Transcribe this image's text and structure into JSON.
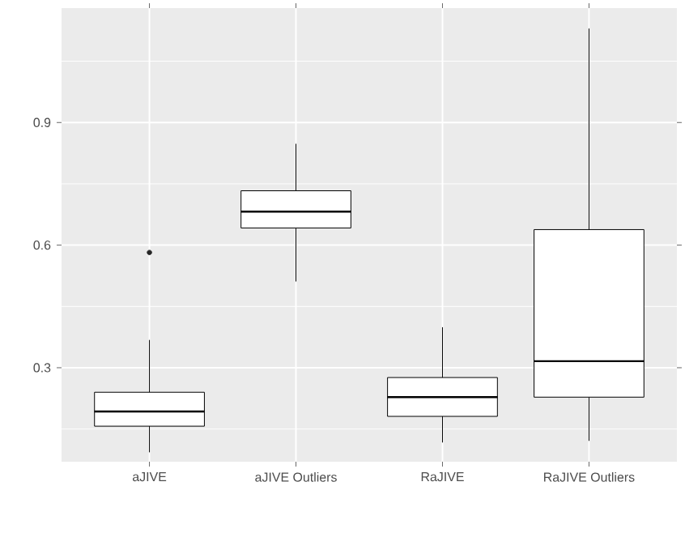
{
  "chart_data": {
    "type": "box",
    "categories": [
      "aJIVE",
      "aJIVE Outliers",
      "RaJIVE",
      "RaJIVE Outliers"
    ],
    "ylim": [
      0.07,
      1.18
    ],
    "yticks": [
      {
        "value": 0.15,
        "label": null
      },
      0.3,
      {
        "value": 0.45,
        "label": null
      },
      0.6,
      {
        "value": 0.75,
        "label": null
      },
      0.9,
      {
        "value": 1.05,
        "label": null
      }
    ],
    "grid": true,
    "boxes": [
      {
        "low": 0.093,
        "q1": 0.157,
        "median": 0.193,
        "q3": 0.24,
        "high": 0.368,
        "outliers": [
          0.582
        ]
      },
      {
        "low": 0.511,
        "q1": 0.642,
        "median": 0.682,
        "q3": 0.733,
        "high": 0.848
      },
      {
        "low": 0.117,
        "q1": 0.181,
        "median": 0.228,
        "q3": 0.276,
        "high": 0.399
      },
      {
        "low": 0.121,
        "q1": 0.228,
        "median": 0.316,
        "q3": 0.638,
        "high": 1.13
      }
    ]
  }
}
